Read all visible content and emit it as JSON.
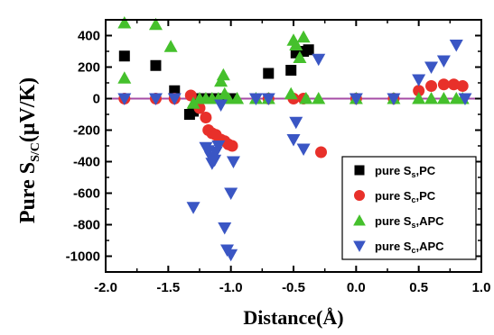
{
  "chart_data": {
    "type": "scatter",
    "xlabel": "Distance(Å)",
    "ylabel": {
      "main": "Pure S",
      "sub": "S/C",
      "unit": "(μV/K)"
    },
    "xlim": [
      -2.0,
      1.0
    ],
    "ylim": [
      -1100,
      500
    ],
    "xticks": [
      -2.0,
      -1.5,
      -1.0,
      -0.5,
      0.0,
      0.5,
      1.0
    ],
    "xtick_labels": [
      "-2.0",
      "-1.5",
      "-1.0",
      "-0.5",
      "0.0",
      "0.5",
      "1.0"
    ],
    "yticks": [
      -1000,
      -800,
      -600,
      -400,
      -200,
      0,
      200,
      400
    ],
    "ytick_labels": [
      "-1000",
      "-800",
      "-600",
      "-400",
      "-200",
      "0",
      "200",
      "400"
    ],
    "grid": false,
    "legend_position": "lower-right",
    "reference_line": {
      "y": 0,
      "color": "#a64ca6"
    },
    "series": [
      {
        "name": "pure S_s,PC",
        "legend": {
          "prefix": "pure S",
          "sub": "s",
          "suffix": ",PC"
        },
        "marker": "square",
        "color": "#000000",
        "points": [
          [
            -1.85,
            270
          ],
          [
            -1.6,
            210
          ],
          [
            -1.45,
            50
          ],
          [
            -1.33,
            -100
          ],
          [
            -1.3,
            -80
          ],
          [
            -1.25,
            0
          ],
          [
            -1.2,
            0
          ],
          [
            -1.15,
            0
          ],
          [
            -1.1,
            0
          ],
          [
            -1.05,
            0
          ],
          [
            -1.0,
            0
          ],
          [
            -0.7,
            160
          ],
          [
            -0.52,
            180
          ],
          [
            -0.48,
            290
          ],
          [
            -0.42,
            300
          ],
          [
            -0.38,
            310
          ]
        ]
      },
      {
        "name": "pure S_c,PC",
        "legend": {
          "prefix": "pure S",
          "sub": "c",
          "suffix": ",PC"
        },
        "marker": "circle",
        "color": "#e8302a",
        "points": [
          [
            -1.85,
            0
          ],
          [
            -1.6,
            0
          ],
          [
            -1.45,
            0
          ],
          [
            -1.32,
            20
          ],
          [
            -1.25,
            -60
          ],
          [
            -1.2,
            -120
          ],
          [
            -1.18,
            -200
          ],
          [
            -1.15,
            -220
          ],
          [
            -1.12,
            -230
          ],
          [
            -1.08,
            -260
          ],
          [
            -1.05,
            -270
          ],
          [
            -1.02,
            -290
          ],
          [
            -0.99,
            -300
          ],
          [
            -0.7,
            0
          ],
          [
            -0.5,
            0
          ],
          [
            -0.42,
            0
          ],
          [
            -0.28,
            -340
          ],
          [
            0.0,
            0
          ],
          [
            0.3,
            0
          ],
          [
            0.5,
            50
          ],
          [
            0.6,
            80
          ],
          [
            0.7,
            90
          ],
          [
            0.78,
            90
          ],
          [
            0.85,
            80
          ]
        ]
      },
      {
        "name": "pure S_s,APC",
        "legend": {
          "prefix": "pure S",
          "sub": "s",
          "suffix": ",APC"
        },
        "marker": "triangle-up",
        "color": "#45c02c",
        "points": [
          [
            -1.85,
            480
          ],
          [
            -1.85,
            130
          ],
          [
            -1.6,
            470
          ],
          [
            -1.48,
            330
          ],
          [
            -1.3,
            -30
          ],
          [
            -1.25,
            0
          ],
          [
            -1.2,
            0
          ],
          [
            -1.15,
            0
          ],
          [
            -1.1,
            0
          ],
          [
            -1.08,
            110
          ],
          [
            -1.06,
            150
          ],
          [
            -1.05,
            30
          ],
          [
            -1.02,
            0
          ],
          [
            -0.95,
            0
          ],
          [
            -0.8,
            0
          ],
          [
            -0.7,
            0
          ],
          [
            -0.52,
            30
          ],
          [
            -0.5,
            370
          ],
          [
            -0.48,
            340
          ],
          [
            -0.45,
            260
          ],
          [
            -0.42,
            390
          ],
          [
            -0.4,
            0
          ],
          [
            -0.3,
            0
          ],
          [
            0.0,
            0
          ],
          [
            0.3,
            0
          ],
          [
            0.5,
            0
          ],
          [
            0.6,
            0
          ],
          [
            0.7,
            0
          ],
          [
            0.8,
            0
          ],
          [
            0.85,
            0
          ]
        ]
      },
      {
        "name": "pure S_c,APC",
        "legend": {
          "prefix": "pure S",
          "sub": "c",
          "suffix": ",APC"
        },
        "marker": "triangle-down",
        "color": "#3a56c4",
        "points": [
          [
            -1.85,
            0
          ],
          [
            -1.6,
            0
          ],
          [
            -1.45,
            0
          ],
          [
            -1.3,
            -690
          ],
          [
            -1.2,
            -310
          ],
          [
            -1.18,
            -330
          ],
          [
            -1.16,
            -370
          ],
          [
            -1.15,
            -410
          ],
          [
            -1.13,
            -390
          ],
          [
            -1.12,
            -340
          ],
          [
            -1.1,
            -300
          ],
          [
            -1.08,
            -40
          ],
          [
            -1.05,
            -820
          ],
          [
            -1.03,
            -960
          ],
          [
            -1.0,
            -990
          ],
          [
            -1.0,
            -600
          ],
          [
            -0.98,
            -400
          ],
          [
            -0.8,
            0
          ],
          [
            -0.7,
            0
          ],
          [
            -0.5,
            -260
          ],
          [
            -0.48,
            -150
          ],
          [
            -0.42,
            -320
          ],
          [
            -0.3,
            250
          ],
          [
            0.0,
            0
          ],
          [
            0.3,
            0
          ],
          [
            0.5,
            120
          ],
          [
            0.6,
            200
          ],
          [
            0.7,
            240
          ],
          [
            0.8,
            340
          ],
          [
            0.87,
            0
          ]
        ]
      }
    ]
  }
}
